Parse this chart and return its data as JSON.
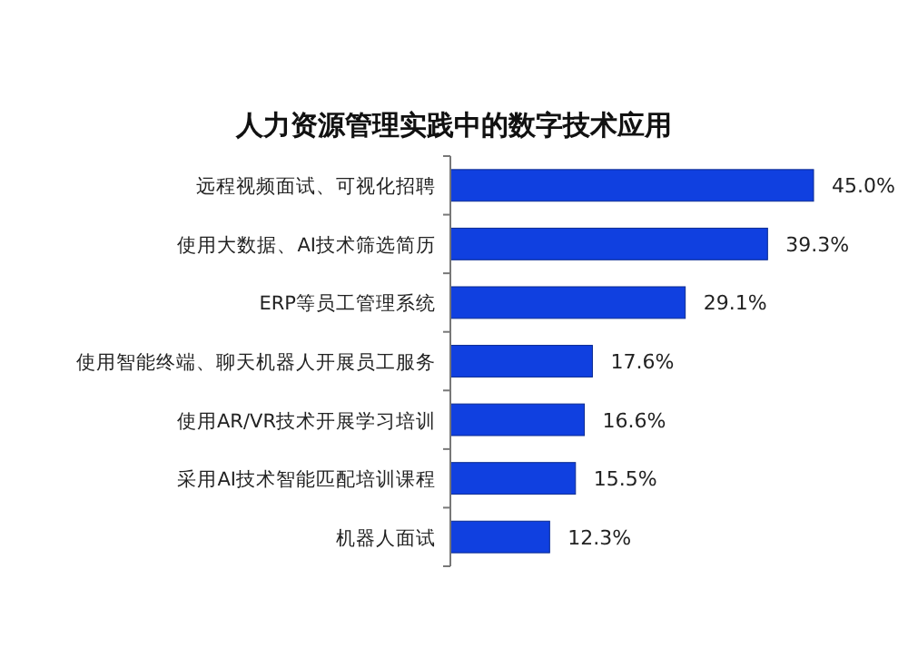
{
  "chart_data": {
    "type": "bar",
    "orientation": "horizontal",
    "title": "人力资源管理实践中的数字技术应用",
    "categories": [
      "远程视频面试、可视化招聘",
      "使用大数据、AI技术筛选简历",
      "ERP等员工管理系统",
      "使用智能终端、聊天机器人开展员工服务",
      "使用AR/VR技术开展学习培训",
      "采用AI技术智能匹配培训课程",
      "机器人面试"
    ],
    "values": [
      45.0,
      39.3,
      29.1,
      17.6,
      16.6,
      15.5,
      12.3
    ],
    "value_labels": [
      "45.0%",
      "39.3%",
      "29.1%",
      "17.6%",
      "16.6%",
      "15.5%",
      "12.3%"
    ],
    "color": "#1040e0"
  }
}
